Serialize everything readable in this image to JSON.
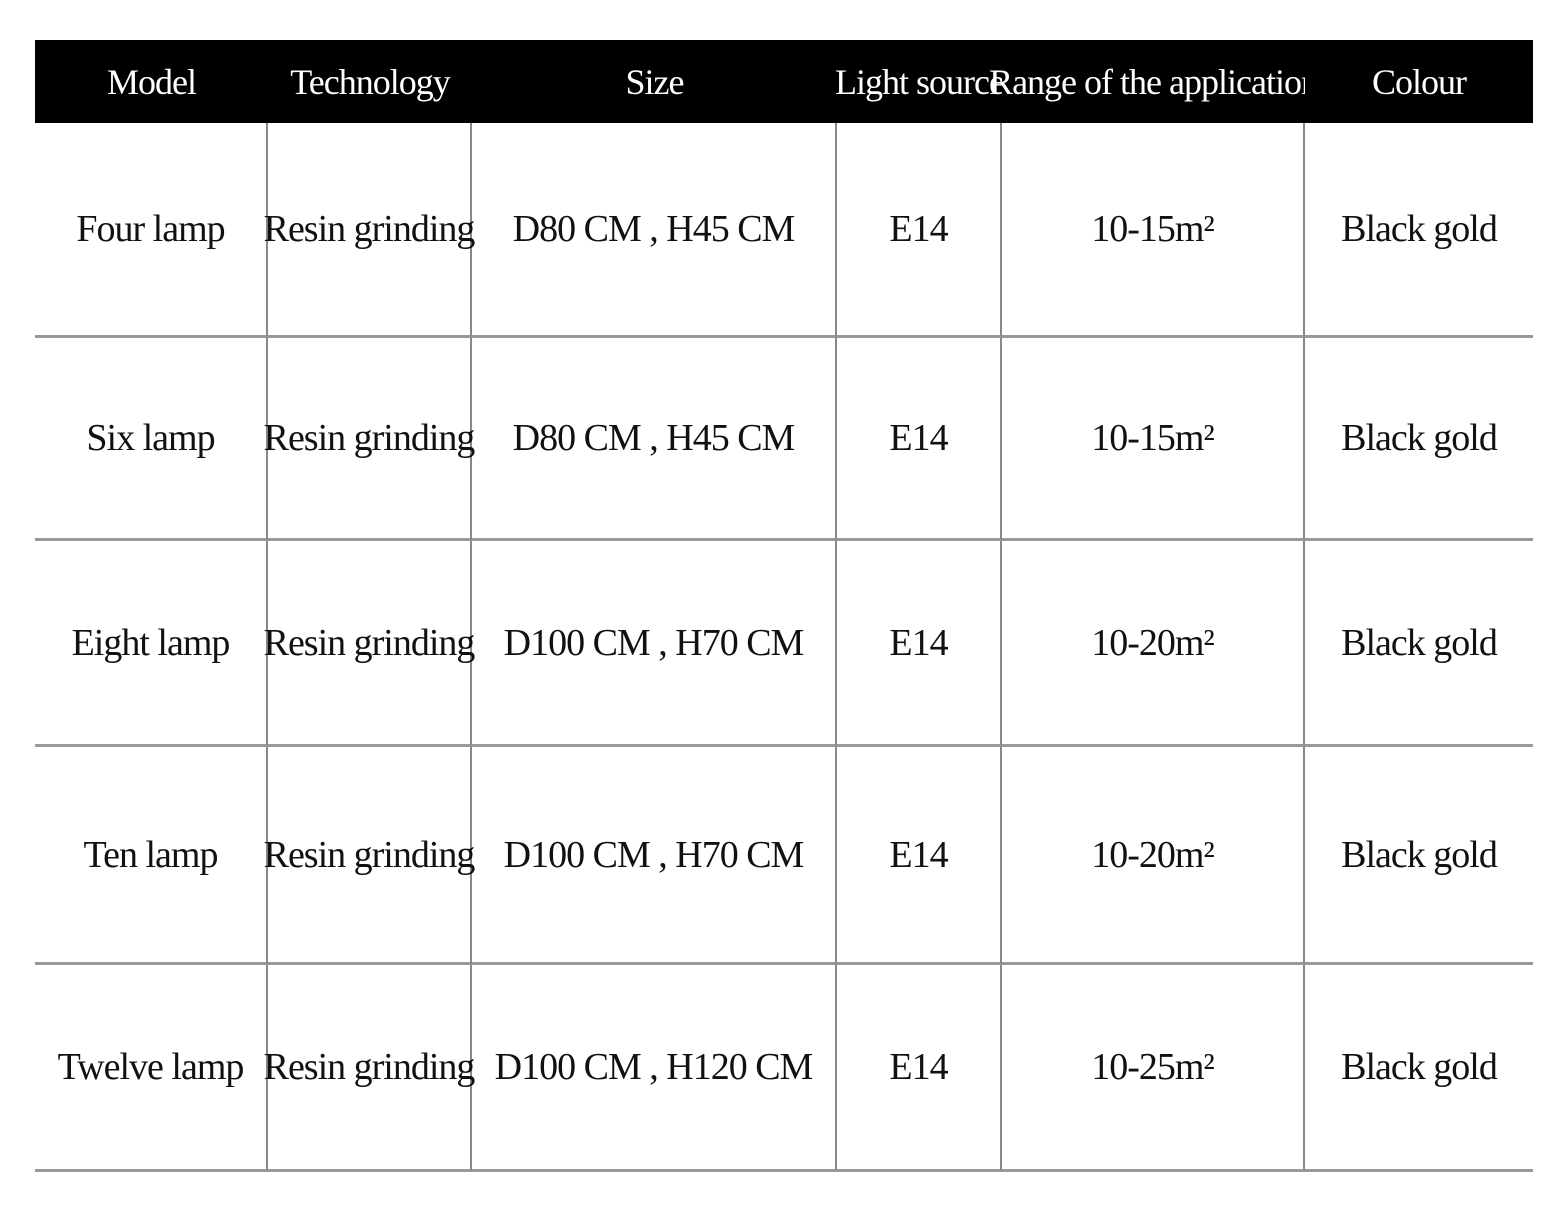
{
  "table": {
    "header": [
      "Model",
      "Technology",
      "Size",
      "Light source",
      "Range of the application",
      "Colour"
    ],
    "rows": [
      [
        "Four lamp",
        "Resin grinding",
        "D80 CM , H45 CM",
        "E14",
        "10-15m²",
        "Black gold"
      ],
      [
        "Six lamp",
        "Resin grinding",
        "D80 CM , H45 CM",
        "E14",
        "10-15m²",
        "Black gold"
      ],
      [
        "Eight lamp",
        "Resin grinding",
        "D100 CM , H70 CM",
        "E14",
        "10-20m²",
        "Black gold"
      ],
      [
        "Ten lamp",
        "Resin grinding",
        "D100 CM , H70 CM",
        "E14",
        "10-20m²",
        "Black gold"
      ],
      [
        "Twelve lamp",
        "Resin grinding",
        "D100 CM , H120 CM",
        "E14",
        "10-25m²",
        "Black gold"
      ]
    ]
  }
}
